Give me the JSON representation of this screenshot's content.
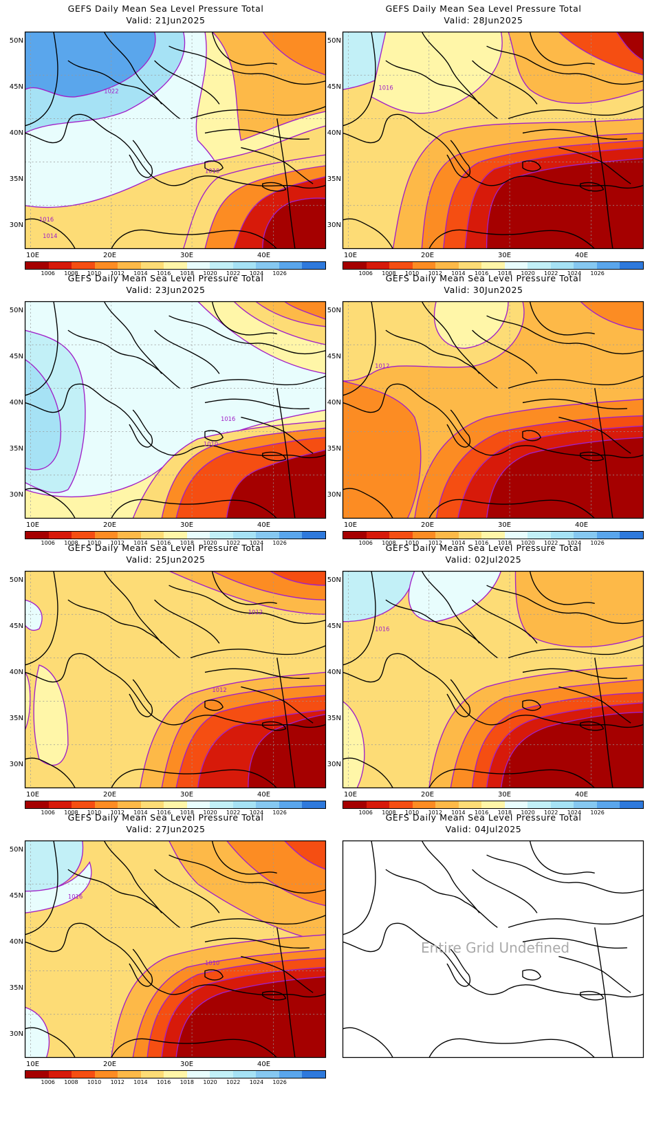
{
  "panels": [
    {
      "title": "GEFS Daily Mean Sea Level Pressure Total",
      "valid": "Valid: 21Jun2025",
      "variant": 0
    },
    {
      "title": "GEFS Daily Mean Sea Level Pressure Total",
      "valid": "Valid: 28Jun2025",
      "variant": 1
    },
    {
      "title": "GEFS Daily Mean Sea Level Pressure Total",
      "valid": "Valid: 23Jun2025",
      "variant": 2
    },
    {
      "title": "GEFS Daily Mean Sea Level Pressure Total",
      "valid": "Valid: 30Jun2025",
      "variant": 3
    },
    {
      "title": "GEFS Daily Mean Sea Level Pressure Total",
      "valid": "Valid: 25Jun2025",
      "variant": 4
    },
    {
      "title": "GEFS Daily Mean Sea Level Pressure Total",
      "valid": "Valid: 02Jul2025",
      "variant": 5
    },
    {
      "title": "GEFS Daily Mean Sea Level Pressure Total",
      "valid": "Valid: 27Jun2025",
      "variant": 6
    },
    {
      "title": "GEFS Daily Mean Sea Level Pressure Total",
      "valid": "Valid: 04Jul2025",
      "variant": 7,
      "undefined_text": "Entire Grid Undefined"
    }
  ],
  "axes": {
    "lat_labels": [
      "50N",
      "45N",
      "40N",
      "35N",
      "30N"
    ],
    "lon_labels": [
      "10E",
      "20E",
      "30E",
      "40E"
    ]
  },
  "colorbar": {
    "colors": [
      "#a50000",
      "#d71a0a",
      "#f54e12",
      "#fc8c23",
      "#fdb948",
      "#fddc76",
      "#fff6a8",
      "#e8fdfd",
      "#c2f0f7",
      "#a6e2f5",
      "#86c8f1",
      "#5aa6ec",
      "#2e79dc"
    ],
    "labels": [
      "1006",
      "1008",
      "1010",
      "1012",
      "1014",
      "1016",
      "1018",
      "1020",
      "1022",
      "1024",
      "1026"
    ]
  },
  "contour_labels": [
    [
      "1022",
      "1010",
      "1016",
      "1014"
    ],
    [
      "1016"
    ],
    [
      "1016",
      "1010"
    ],
    [
      "1012"
    ],
    [
      "1012",
      "1012"
    ],
    [
      "1016"
    ],
    [
      "1016",
      "1010"
    ],
    []
  ],
  "contour_color": "#a020c8"
}
